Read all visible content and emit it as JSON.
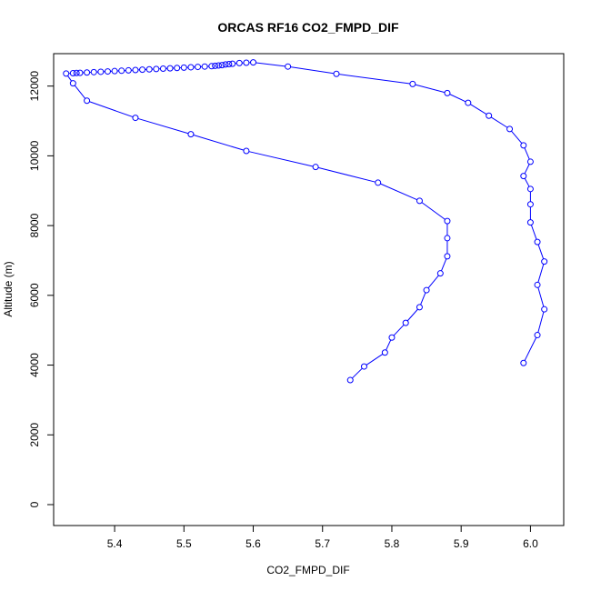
{
  "chart_data": {
    "type": "line",
    "title": "ORCAS RF16 CO2_FMPD_DIF",
    "xlabel": "CO2_FMPD_DIF",
    "ylabel": "Altitude (m)",
    "xlim": [
      5.312,
      6.048
    ],
    "ylim": [
      -600,
      12930
    ],
    "grid": false,
    "x_ticks": [
      5.4,
      5.5,
      5.6,
      5.7,
      5.8,
      5.9,
      6.0
    ],
    "x_tick_labels": [
      "5.4",
      "5.5",
      "5.6",
      "5.7",
      "5.8",
      "5.9",
      "6.0"
    ],
    "y_ticks": [
      0,
      2000,
      4000,
      6000,
      8000,
      10000,
      12000
    ],
    "y_tick_labels": [
      "0",
      "2000",
      "4000",
      "6000",
      "8000",
      "10000",
      "12000"
    ],
    "series": [
      {
        "color": "#0000ff",
        "marker": "open-circle",
        "x": [
          5.99,
          6.01,
          6.02,
          6.01,
          6.02,
          6.01,
          6.0,
          6.0,
          6.0,
          5.99,
          6.0,
          5.99,
          5.97,
          5.94,
          5.91,
          5.88,
          5.83,
          5.72,
          5.65,
          5.6,
          5.59,
          5.58,
          5.57,
          5.565,
          5.56,
          5.555,
          5.55,
          5.545,
          5.54,
          5.53,
          5.52,
          5.51,
          5.5,
          5.49,
          5.48,
          5.47,
          5.46,
          5.45,
          5.44,
          5.43,
          5.42,
          5.41,
          5.4,
          5.39,
          5.38,
          5.37,
          5.36,
          5.35,
          5.345,
          5.34,
          5.33,
          5.34,
          5.36,
          5.43,
          5.51,
          5.59,
          5.69,
          5.78,
          5.84,
          5.88,
          5.88,
          5.88,
          5.87,
          5.85,
          5.84,
          5.82,
          5.8,
          5.79,
          5.76,
          5.74
        ],
        "y": [
          4060,
          4860,
          5600,
          6300,
          6970,
          7530,
          8090,
          8610,
          9050,
          9420,
          9830,
          10300,
          10770,
          11150,
          11520,
          11800,
          12060,
          12350,
          12560,
          12680,
          12670,
          12660,
          12640,
          12630,
          12620,
          12600,
          12590,
          12580,
          12570,
          12560,
          12550,
          12540,
          12530,
          12520,
          12510,
          12500,
          12490,
          12480,
          12470,
          12460,
          12450,
          12440,
          12430,
          12420,
          12410,
          12400,
          12390,
          12380,
          12375,
          12370,
          12360,
          12080,
          11580,
          11090,
          10620,
          10140,
          9680,
          9230,
          8710,
          8130,
          7640,
          7120,
          6630,
          6150,
          5660,
          5210,
          4790,
          4360,
          3960,
          3570
        ]
      }
    ]
  }
}
